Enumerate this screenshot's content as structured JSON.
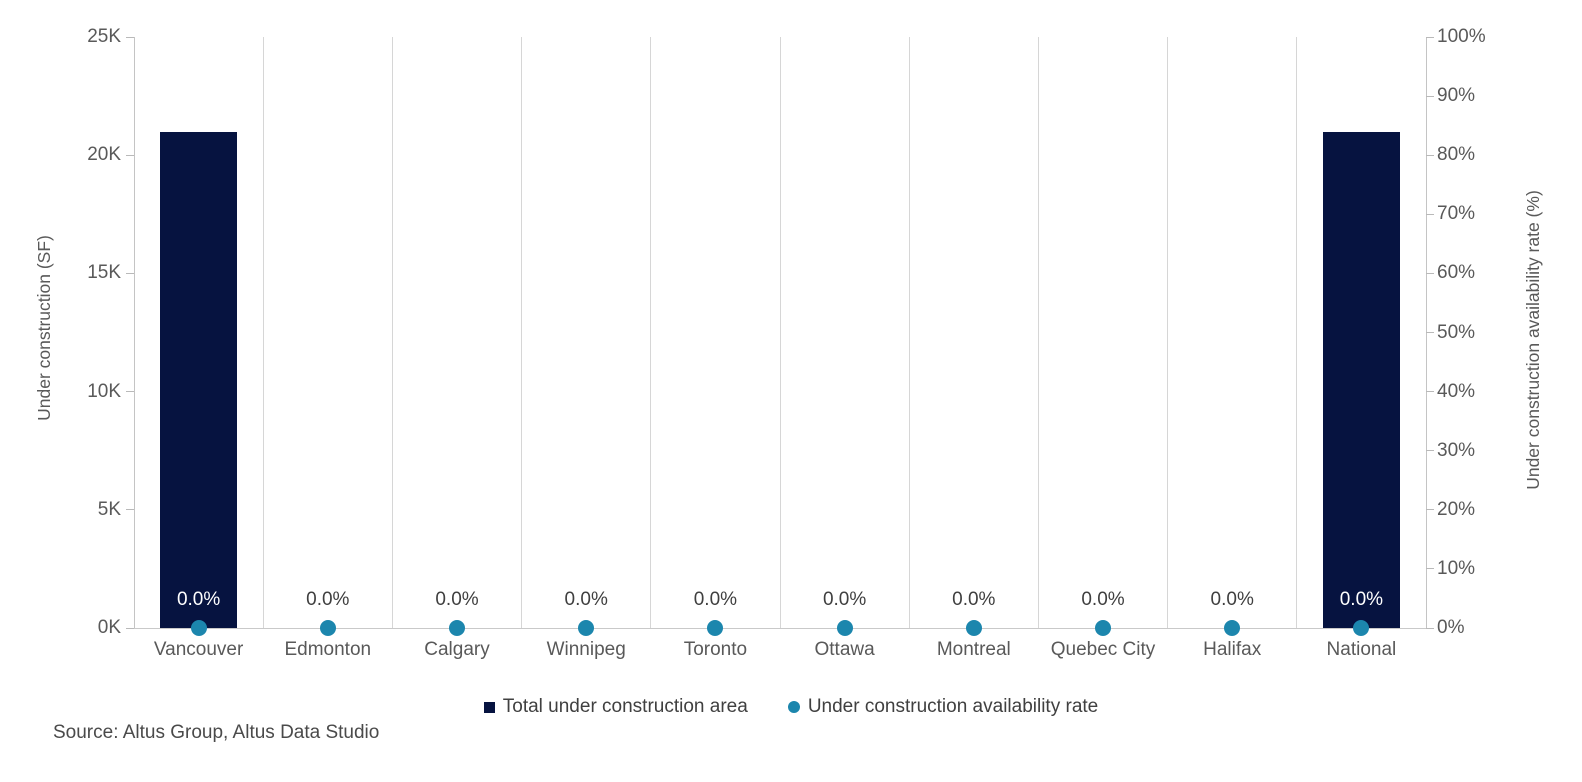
{
  "chart_data": {
    "type": "bar",
    "subtype": "bar-and-scatter-combo-dual-axis",
    "categories": [
      "Vancouver",
      "Edmonton",
      "Calgary",
      "Winnipeg",
      "Toronto",
      "Ottawa",
      "Montreal",
      "Quebec City",
      "Halifax",
      "National"
    ],
    "series": [
      {
        "name": "Total under construction area",
        "type": "bar",
        "axis": "left",
        "unit": "SF",
        "values": [
          21000,
          0,
          0,
          0,
          0,
          0,
          0,
          0,
          0,
          21000
        ]
      },
      {
        "name": "Under construction availability rate",
        "type": "scatter",
        "axis": "right",
        "unit": "%",
        "values": [
          0,
          0,
          0,
          0,
          0,
          0,
          0,
          0,
          0,
          0
        ],
        "point_labels": [
          "0.0%",
          "0.0%",
          "0.0%",
          "0.0%",
          "0.0%",
          "0.0%",
          "0.0%",
          "0.0%",
          "0.0%",
          "0.0%"
        ]
      }
    ],
    "left_axis": {
      "title": "Under construction (SF)",
      "min": 0,
      "max": 25000,
      "ticks": [
        {
          "value": 0,
          "label": "0K"
        },
        {
          "value": 5000,
          "label": "5K"
        },
        {
          "value": 10000,
          "label": "10K"
        },
        {
          "value": 15000,
          "label": "15K"
        },
        {
          "value": 20000,
          "label": "20K"
        },
        {
          "value": 25000,
          "label": "25K"
        }
      ]
    },
    "right_axis": {
      "title": "Under construction availability rate (%)",
      "min": 0,
      "max": 100,
      "ticks": [
        {
          "value": 0,
          "label": "0%"
        },
        {
          "value": 10,
          "label": "10%"
        },
        {
          "value": 20,
          "label": "20%"
        },
        {
          "value": 30,
          "label": "30%"
        },
        {
          "value": 40,
          "label": "40%"
        },
        {
          "value": 50,
          "label": "50%"
        },
        {
          "value": 60,
          "label": "60%"
        },
        {
          "value": 70,
          "label": "70%"
        },
        {
          "value": 80,
          "label": "80%"
        },
        {
          "value": 90,
          "label": "90%"
        },
        {
          "value": 100,
          "label": "100%"
        }
      ]
    },
    "grid": "vertical-category-separators-only",
    "legend_position": "bottom-center",
    "title": ""
  },
  "legend": {
    "items": [
      {
        "label": "Total under construction area",
        "marker": "square",
        "color": "#061340"
      },
      {
        "label": "Under construction availability rate",
        "marker": "circle",
        "color": "#1c86ad"
      }
    ]
  },
  "source": "Source: Altus Group, Altus Data Studio",
  "colors": {
    "bar": "#061340",
    "dot": "#1c86ad",
    "gridline": "#d6d6d6",
    "axis_line": "#c4c4c4",
    "tick_text": "#595959",
    "category_text": "#595959",
    "point_label_text": "#3f3f3f",
    "point_label_on_bar": "#ffffff",
    "legend_text": "#404040",
    "source_text": "#4a4a4a",
    "background": "#ffffff"
  }
}
